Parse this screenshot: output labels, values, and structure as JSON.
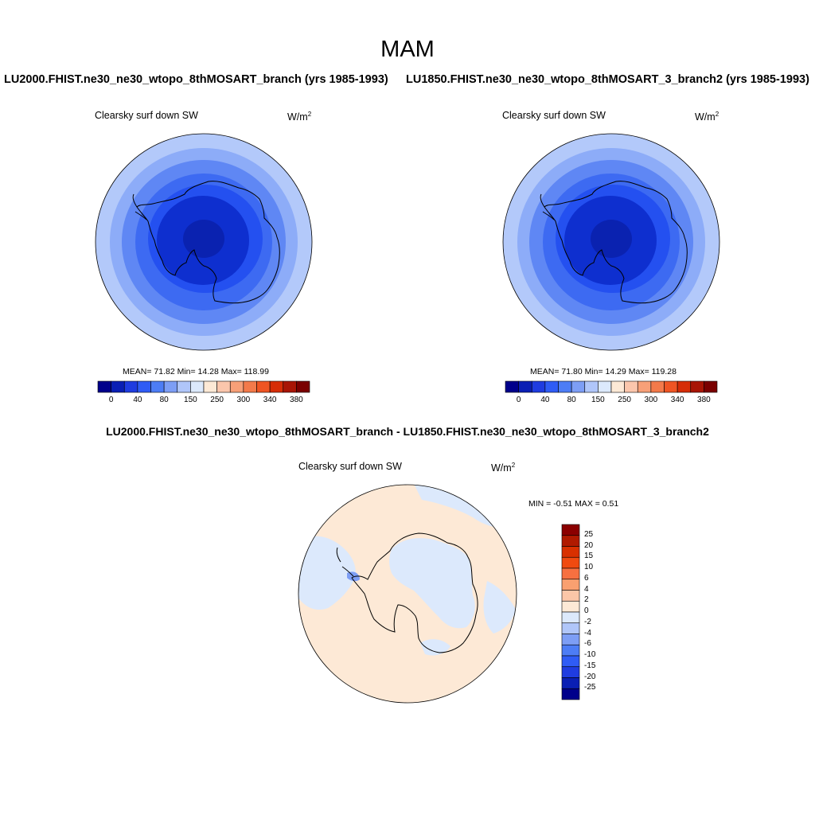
{
  "title": "MAM",
  "panels": [
    {
      "case_title": "LU2000.FHIST.ne30_ne30_wtopo_8thMOSART_branch (yrs 1985-1993)",
      "variable": "Clearsky surf down SW",
      "units": "W/m",
      "units_sup": "2",
      "stats": "MEAN=  71.82  Min=  14.28  Max= 118.99",
      "colorbar_ticks": [
        "0",
        "40",
        "80",
        "150",
        "250",
        "300",
        "340",
        "380"
      ]
    },
    {
      "case_title": "LU1850.FHIST.ne30_ne30_wtopo_8thMOSART_3_branch2 (yrs 1985-1993)",
      "variable": "Clearsky surf down SW",
      "units": "W/m",
      "units_sup": "2",
      "stats": "MEAN=  71.80  Min=  14.29  Max= 119.28",
      "colorbar_ticks": [
        "0",
        "40",
        "80",
        "150",
        "250",
        "300",
        "340",
        "380"
      ]
    }
  ],
  "difference": {
    "title": "LU2000.FHIST.ne30_ne30_wtopo_8thMOSART_branch - LU1850.FHIST.ne30_ne30_wtopo_8thMOSART_3_branch2",
    "variable": "Clearsky surf down SW",
    "units": "W/m",
    "units_sup": "2",
    "minmax": "MIN =  -0.51 MAX =   0.51",
    "colorbar_ticks": [
      "25",
      "20",
      "15",
      "10",
      "6",
      "4",
      "2",
      "0",
      "-2",
      "-4",
      "-6",
      "-10",
      "-15",
      "-20",
      "-25"
    ]
  },
  "colors": {
    "abs_colorbar": [
      "#00008b",
      "#0a1fb4",
      "#1f3ce0",
      "#2f5cf5",
      "#4d7df5",
      "#7d9ef5",
      "#b0c6f9",
      "#dce9fc",
      "#fde9d6",
      "#fbc6ac",
      "#f7a078",
      "#f37a4a",
      "#ef5523",
      "#d62d07",
      "#a81505",
      "#7a0000"
    ],
    "diff_colorbar": [
      "#8b0000",
      "#b01a00",
      "#d83000",
      "#f04a10",
      "#f77040",
      "#f9a070",
      "#fbc6a8",
      "#fde9d6",
      "#dce9fc",
      "#b0c6f9",
      "#7d9ef5",
      "#4d7df5",
      "#2f5cf5",
      "#1f3ce0",
      "#0a1fb4",
      "#00008b"
    ],
    "rings": [
      "#b3c9fa",
      "#8dacf8",
      "#5f87f4",
      "#3d6af2",
      "#2450f0",
      "#0e2fcf",
      "#0a22b0"
    ],
    "diff_positive": "#fde9d6",
    "diff_negative": "#dce9fc",
    "diff_negative_strong": "#7d9ef5"
  }
}
